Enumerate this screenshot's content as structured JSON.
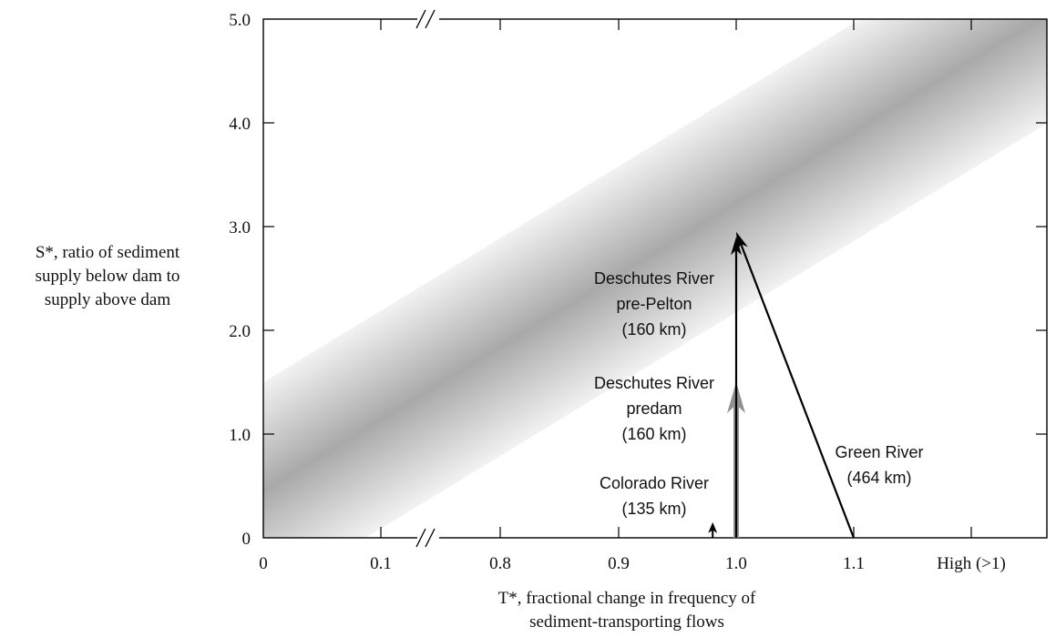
{
  "chart_data": {
    "type": "line",
    "title": "",
    "xlabel_lines": [
      "T*, fractional change in frequency of",
      "sediment-transporting flows"
    ],
    "ylabel_lines": [
      "S*, ratio of sediment",
      "supply below dam to",
      "supply above dam"
    ],
    "x_tick_labels": [
      "0",
      "0.1",
      "0.8",
      "0.9",
      "1.0",
      "1.1",
      "High (>1)"
    ],
    "x_axis_break": "between 0.1 and 0.8",
    "y_tick_labels": [
      "0",
      "1.0",
      "2.0",
      "3.0",
      "4.0",
      "5.0"
    ],
    "ylim": [
      0,
      5
    ],
    "grid": false,
    "band": {
      "description": "shaded diagonal band, darker along center line",
      "center_line": [
        {
          "x": "0",
          "y": 0.45
        },
        {
          "x": "High (>1)",
          "y": 4.6
        }
      ],
      "half_width_s": 1.05
    },
    "arrows": [
      {
        "name": "Colorado River",
        "label_lines": [
          "Colorado River",
          "(135 km)"
        ],
        "from": {
          "x": 0.98,
          "y": 0
        },
        "to": {
          "x": 0.98,
          "y": 0.15
        },
        "color": "#000000"
      },
      {
        "name": "Deschutes River predam",
        "label_lines": [
          "Deschutes River",
          "predam",
          "(160 km)"
        ],
        "from": {
          "x": 1.0,
          "y": 0
        },
        "to": {
          "x": 1.0,
          "y": 1.5
        },
        "color": "#909090"
      },
      {
        "name": "Deschutes River pre-Pelton",
        "label_lines": [
          "Deschutes River",
          "pre-Pelton",
          "(160 km)"
        ],
        "from": {
          "x": 1.0,
          "y": 0
        },
        "to": {
          "x": 1.0,
          "y": 2.9
        },
        "color": "#000000"
      },
      {
        "name": "Green River",
        "label_lines": [
          "Green River",
          "(464 km)"
        ],
        "from": {
          "x": 1.1,
          "y": 0
        },
        "to": {
          "x": 1.0,
          "y": 2.95
        },
        "color": "#000000"
      }
    ]
  }
}
